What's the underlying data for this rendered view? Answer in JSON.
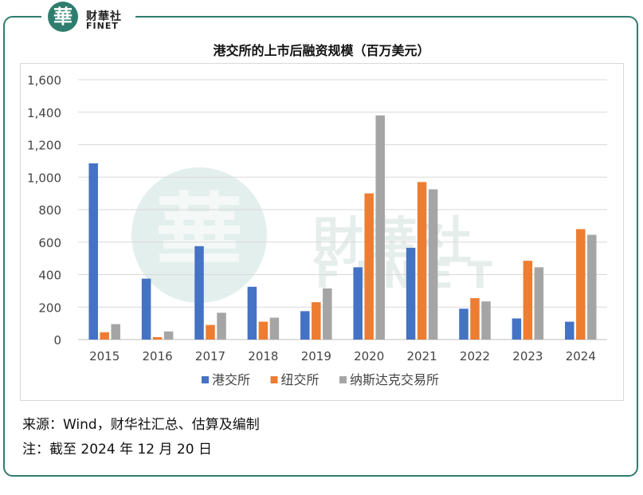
{
  "logo": {
    "glyph": "華",
    "name_cn": "财華社",
    "name_en": "FINET"
  },
  "watermark": {
    "glyph": "華",
    "name_cn": "財華社",
    "name_en": "FINET"
  },
  "chart_data": {
    "type": "bar",
    "title": "港交所的上市后融资规模（百万美元）",
    "categories": [
      "2015",
      "2016",
      "2017",
      "2018",
      "2019",
      "2020",
      "2021",
      "2022",
      "2023",
      "2024"
    ],
    "series": [
      {
        "name": "港交所",
        "color": "#4472c4",
        "values": [
          1085,
          375,
          575,
          325,
          175,
          445,
          565,
          190,
          130,
          110
        ]
      },
      {
        "name": "纽交所",
        "color": "#ed7d31",
        "values": [
          45,
          15,
          90,
          110,
          230,
          900,
          970,
          255,
          485,
          680
        ]
      },
      {
        "name": "纳斯达克交易所",
        "color": "#a5a5a5",
        "values": [
          95,
          50,
          165,
          135,
          315,
          1380,
          925,
          235,
          445,
          645
        ]
      }
    ],
    "y_ticks": [
      "0",
      "200",
      "400",
      "600",
      "800",
      "1,000",
      "1,200",
      "1,400",
      "1,600"
    ],
    "ylim": [
      0,
      1600
    ],
    "grid": true,
    "legend": "bottom"
  },
  "footer": {
    "source": "来源：Wind，财华社汇总、估算及编制",
    "note": "注：截至 2024 年 12 月 20 日"
  }
}
